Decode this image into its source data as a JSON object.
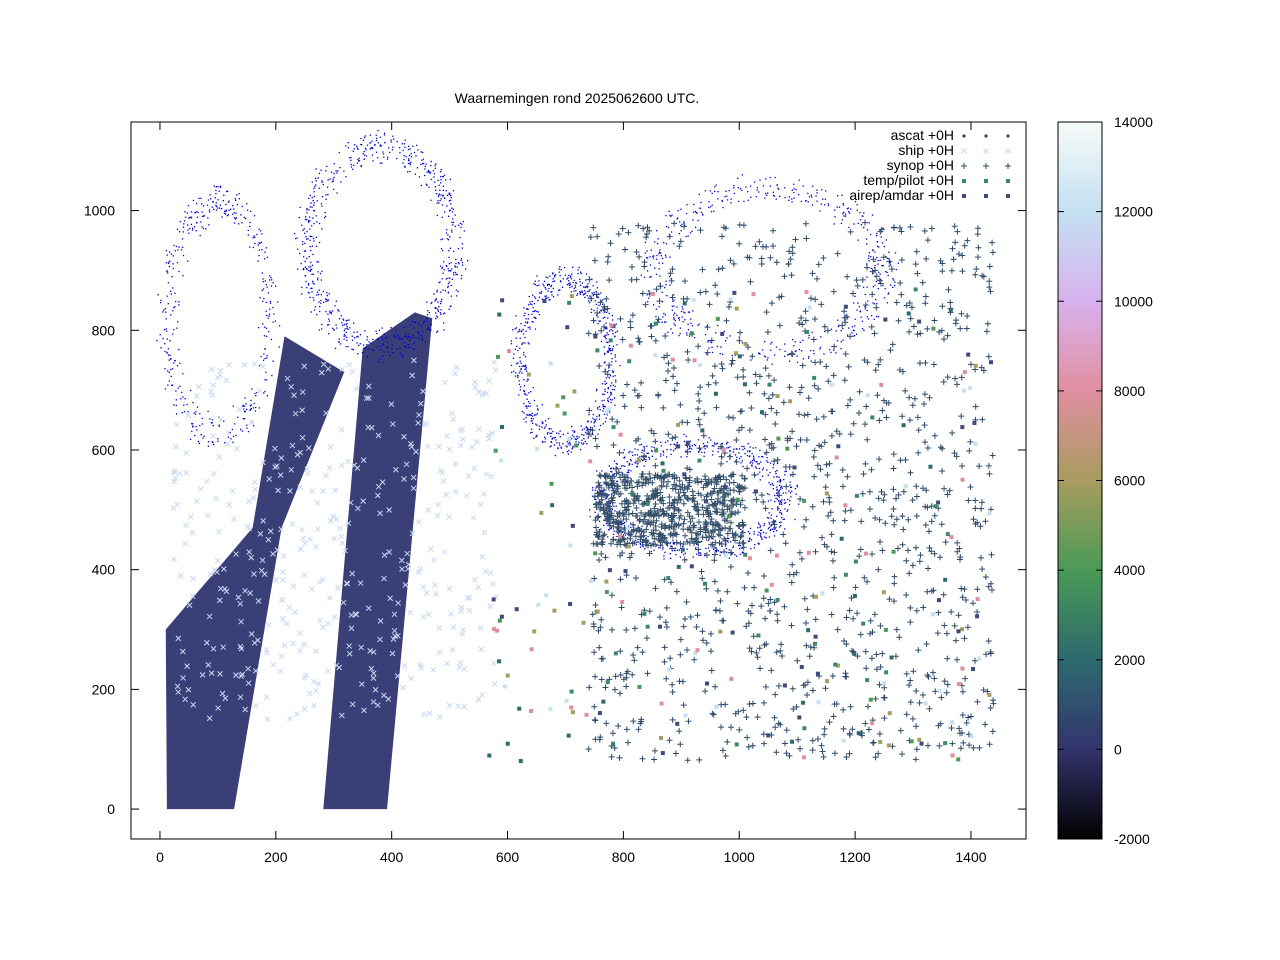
{
  "chart_data": {
    "type": "scatter",
    "title": "Waarnemingen rond 2025062600 UTC.",
    "xlabel": "",
    "ylabel": "",
    "xlim": [
      -50,
      1495
    ],
    "ylim": [
      -50,
      1148
    ],
    "x_ticks": [
      0,
      200,
      400,
      600,
      800,
      1000,
      1200,
      1400
    ],
    "y_ticks": [
      0,
      200,
      400,
      600,
      800,
      1000
    ],
    "grid": false,
    "legend_position": "top-right",
    "series": [
      {
        "name": "ascat +0H",
        "marker": "dot",
        "color": "#3a3f78"
      },
      {
        "name": "ship +0H",
        "marker": "x",
        "color": "#c6d8f2"
      },
      {
        "name": "synop +0H",
        "marker": "plus",
        "color": "#2e4a6a"
      },
      {
        "name": "temp/pilot +0H",
        "marker": "square",
        "color": "#3a8a6a"
      },
      {
        "name": "airep/amdar +0H",
        "marker": "square",
        "color": "#3d4a7a"
      }
    ],
    "colorbar": {
      "range": [
        -2000,
        14000
      ],
      "ticks": [
        -2000,
        0,
        2000,
        4000,
        6000,
        8000,
        10000,
        12000,
        14000
      ],
      "tick_labels": [
        "-2000",
        "0",
        "2000",
        "4000",
        "6000",
        "8000",
        "10000",
        "12000",
        "14000"
      ],
      "stops": [
        {
          "value": -2000,
          "color": "#000000"
        },
        {
          "value": 0,
          "color": "#34346e"
        },
        {
          "value": 2000,
          "color": "#2c6a6e"
        },
        {
          "value": 4000,
          "color": "#4a9a56"
        },
        {
          "value": 6000,
          "color": "#a89c5e"
        },
        {
          "value": 8000,
          "color": "#e08ea0"
        },
        {
          "value": 10000,
          "color": "#d8b2ee"
        },
        {
          "value": 12000,
          "color": "#c4e0f2"
        },
        {
          "value": 14000,
          "color": "#f6fbf8"
        }
      ]
    },
    "ascat_swaths": [
      {
        "points": [
          [
            12,
            0
          ],
          [
            128,
            0
          ],
          [
            210,
            470
          ],
          [
            318,
            730
          ],
          [
            215,
            790
          ],
          [
            160,
            470
          ],
          [
            10,
            300
          ]
        ]
      },
      {
        "points": [
          [
            282,
            0
          ],
          [
            392,
            0
          ],
          [
            470,
            820
          ],
          [
            440,
            830
          ],
          [
            350,
            770
          ]
        ]
      }
    ],
    "coastline_color": "#0000cc"
  }
}
